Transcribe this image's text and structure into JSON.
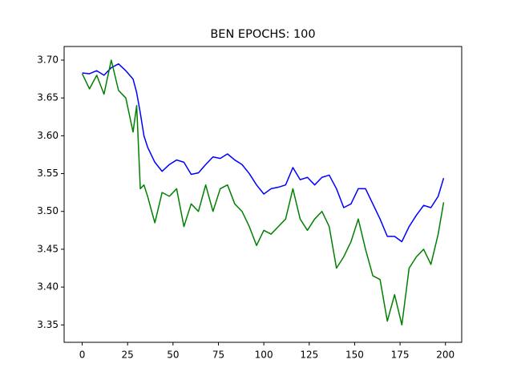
{
  "chart_data": {
    "type": "line",
    "title": "BEN EPOCHS: 100",
    "x": [
      0,
      4,
      8,
      12,
      16,
      20,
      24,
      28,
      30,
      32,
      34,
      36,
      40,
      44,
      48,
      52,
      56,
      60,
      64,
      68,
      72,
      76,
      80,
      84,
      88,
      92,
      96,
      100,
      104,
      108,
      112,
      116,
      120,
      124,
      128,
      132,
      136,
      140,
      144,
      148,
      152,
      156,
      160,
      164,
      168,
      172,
      176,
      180,
      184,
      188,
      192,
      196,
      199
    ],
    "series": [
      {
        "color": "#0000ff",
        "values": [
          3.683,
          3.682,
          3.686,
          3.68,
          3.69,
          3.695,
          3.686,
          3.675,
          3.657,
          3.63,
          3.6,
          3.585,
          3.565,
          3.553,
          3.562,
          3.568,
          3.565,
          3.549,
          3.551,
          3.562,
          3.572,
          3.57,
          3.576,
          3.568,
          3.562,
          3.55,
          3.535,
          3.523,
          3.53,
          3.532,
          3.535,
          3.558,
          3.542,
          3.545,
          3.535,
          3.545,
          3.548,
          3.53,
          3.505,
          3.51,
          3.53,
          3.53,
          3.51,
          3.49,
          3.467,
          3.467,
          3.46,
          3.48,
          3.495,
          3.508,
          3.505,
          3.52,
          3.544
        ]
      },
      {
        "color": "#008000",
        "values": [
          3.682,
          3.662,
          3.68,
          3.655,
          3.7,
          3.66,
          3.65,
          3.605,
          3.64,
          3.53,
          3.535,
          3.52,
          3.485,
          3.525,
          3.52,
          3.53,
          3.48,
          3.51,
          3.5,
          3.535,
          3.5,
          3.53,
          3.535,
          3.51,
          3.5,
          3.48,
          3.455,
          3.475,
          3.47,
          3.48,
          3.49,
          3.53,
          3.49,
          3.475,
          3.49,
          3.5,
          3.48,
          3.425,
          3.44,
          3.46,
          3.49,
          3.45,
          3.415,
          3.41,
          3.355,
          3.39,
          3.35,
          3.425,
          3.44,
          3.45,
          3.43,
          3.47,
          3.512
        ]
      }
    ],
    "xlim": [
      -9.95,
      208.95
    ],
    "xticks": [
      0,
      25,
      50,
      75,
      100,
      125,
      150,
      175,
      200
    ],
    "ylim": [
      3.327,
      3.718
    ],
    "yticks": [
      3.35,
      {
        "value": 3.4,
        "label": "3.40"
      },
      3.45,
      {
        "value": 3.5,
        "label": "3.50"
      },
      3.55,
      {
        "value": 3.6,
        "label": "3.60"
      },
      3.65,
      {
        "value": 3.7,
        "label": "3.70"
      }
    ],
    "grid": false
  }
}
